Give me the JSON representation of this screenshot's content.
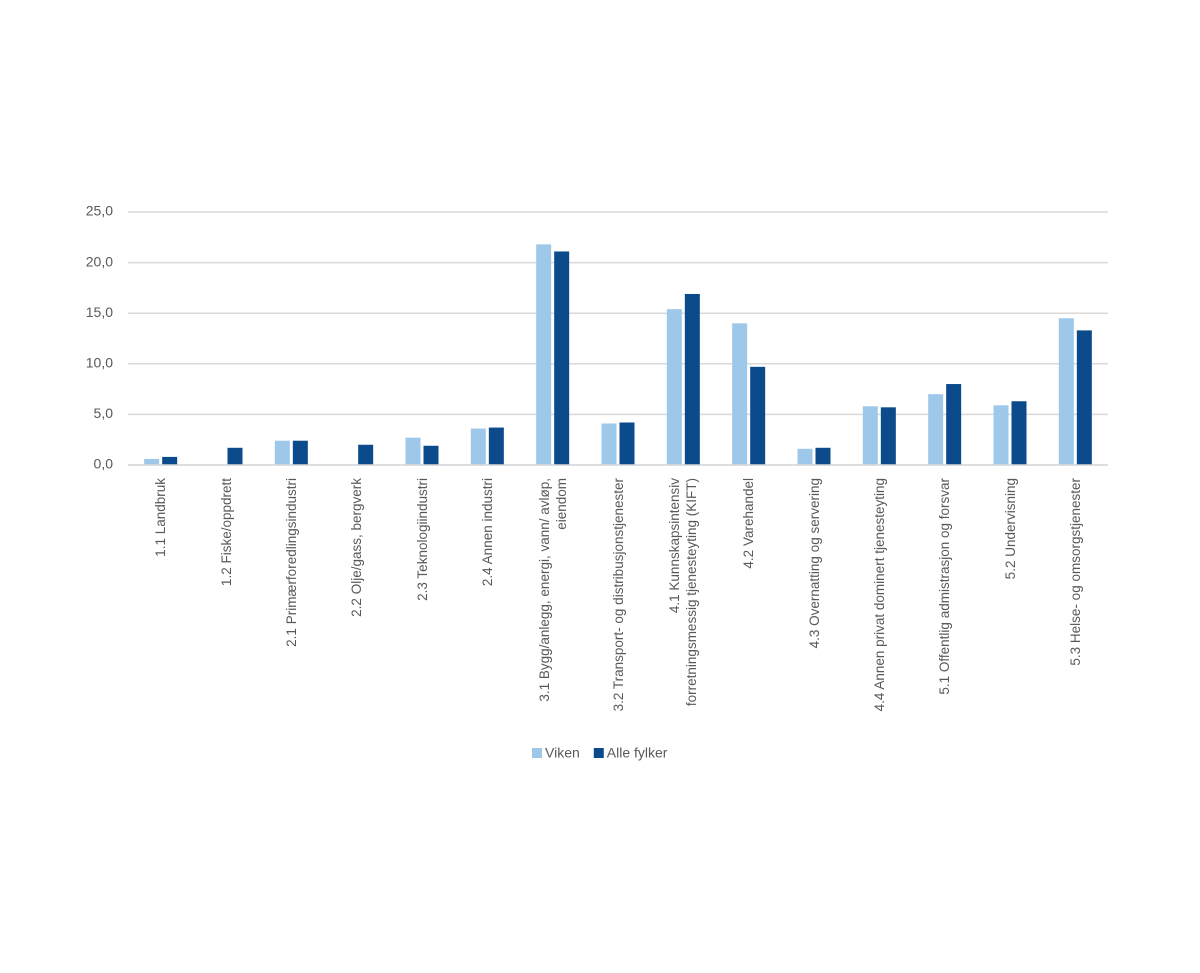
{
  "chart_data": {
    "type": "bar",
    "categories": [
      "1.1 Landbruk",
      "1.2 Fiske/oppdrett",
      "2.1 Primærforedlingsindustri",
      "2.2 Olje/gass, bergverk",
      "2.3 Teknologiindustri",
      "2.4 Annen industri",
      "3.1 Bygg/anlegg, energi, vann/ avløp, eiendom",
      "3.2 Transport- og distribusjonstjenester",
      "4.1 Kunnskapsintensiv forretningsmessig tjenesteyting (KIFT)",
      "4.2 Varehandel",
      "4.3 Overnatting og servering",
      "4.4 Annen privat dominert tjenesteyting",
      "5.1 Offentlig admistrasjon og forsvar",
      "5.2 Undervisning",
      "5.3 Helse- og omsorgstjenester"
    ],
    "series": [
      {
        "name": "Viken",
        "color": "#9dc8ea",
        "values": [
          0.6,
          null,
          2.4,
          null,
          2.7,
          3.6,
          21.8,
          4.1,
          15.4,
          14.0,
          1.6,
          5.8,
          7.0,
          5.9,
          14.5
        ]
      },
      {
        "name": "Alle fylker",
        "color": "#0b4a8b",
        "values": [
          0.8,
          1.7,
          2.4,
          2.0,
          1.9,
          3.7,
          21.1,
          4.2,
          16.9,
          9.7,
          1.7,
          5.7,
          8.0,
          6.3,
          13.3
        ]
      }
    ],
    "ylim": [
      0,
      25
    ],
    "yticks": [
      {
        "value": 0,
        "label": "0,0"
      },
      {
        "value": 5,
        "label": "5,0"
      },
      {
        "value": 10,
        "label": "10,0"
      },
      {
        "value": 15,
        "label": "15,0"
      },
      {
        "value": 20,
        "label": "20,0"
      },
      {
        "value": 25,
        "label": "25,0"
      }
    ],
    "grid": true
  }
}
